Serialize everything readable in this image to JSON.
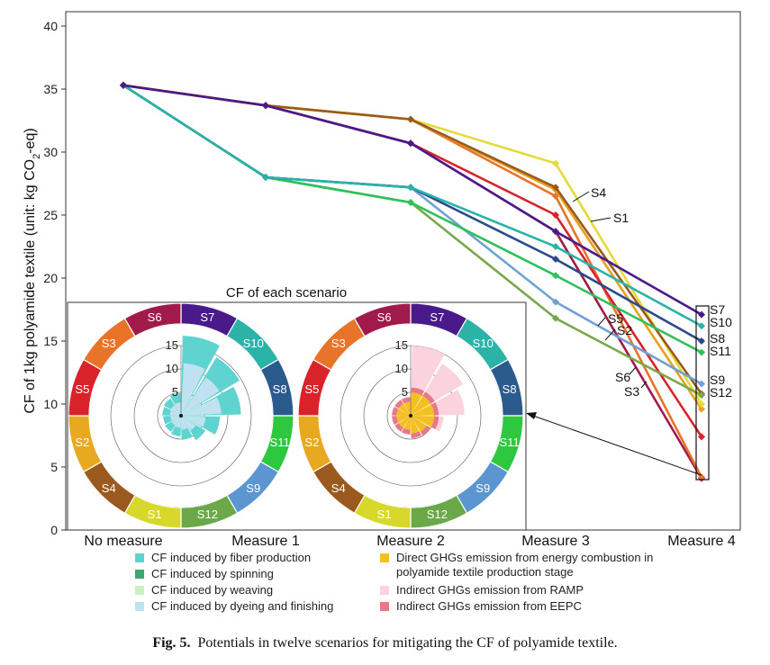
{
  "chart_data": [
    {
      "type": "line",
      "categories": [
        "No measure",
        "Measure 1",
        "Measure 2",
        "Measure 3",
        "Measure 4"
      ],
      "ylabel": "CF of 1kg polyamide textile (unit: kg CO",
      "ylabel_sub": "2",
      "ylabel_end": "-eq)",
      "ylim": [
        0,
        40
      ],
      "yticks": [
        0,
        5,
        10,
        15,
        20,
        25,
        30,
        35,
        40
      ],
      "grid": false,
      "series": [
        {
          "name": "S7",
          "color": "#4b1a8a",
          "values": [
            35.3,
            33.7,
            30.7,
            23.7,
            17.1
          ]
        },
        {
          "name": "S10",
          "color": "#2bb3a8",
          "values": [
            35.3,
            28.0,
            27.2,
            22.5,
            16.2
          ]
        },
        {
          "name": "S8",
          "color": "#2b4a8c",
          "values": [
            35.3,
            28.0,
            27.2,
            21.5,
            15.0
          ]
        },
        {
          "name": "S11",
          "color": "#2ec05a",
          "values": [
            35.3,
            28.0,
            26.0,
            20.2,
            14.1
          ]
        },
        {
          "name": "S9",
          "color": "#6fa1d4",
          "values": [
            35.3,
            28.0,
            27.2,
            18.1,
            11.6
          ]
        },
        {
          "name": "S12",
          "color": "#7aa84a",
          "values": [
            35.3,
            28.0,
            26.0,
            16.8,
            10.7
          ]
        },
        {
          "name": "S4",
          "color": "#9a5a1e",
          "values": [
            35.3,
            33.7,
            32.6,
            27.2,
            10.8
          ]
        },
        {
          "name": "S1",
          "color": "#e6d93a",
          "values": [
            35.3,
            33.7,
            32.6,
            29.1,
            10.0
          ]
        },
        {
          "name": "S2",
          "color": "#e8a020",
          "values": [
            35.3,
            33.7,
            32.6,
            27.0,
            9.6
          ]
        },
        {
          "name": "S5",
          "color": "#d8232a",
          "values": [
            35.3,
            33.7,
            30.7,
            25.0,
            7.4
          ]
        },
        {
          "name": "S3",
          "color": "#e8742a",
          "values": [
            35.3,
            33.7,
            32.6,
            26.5,
            4.2
          ]
        },
        {
          "name": "S6",
          "color": "#a01a4a",
          "values": [
            35.3,
            33.7,
            30.7,
            23.7,
            4.1
          ]
        }
      ],
      "line_labels": [
        "S4",
        "S1",
        "S5",
        "S2",
        "S6",
        "S3"
      ],
      "end_labels": [
        "S7",
        "S10",
        "S8",
        "S11",
        "S9",
        "S12"
      ]
    },
    {
      "type": "radial-bar",
      "title": "CF of each scenario",
      "rticks": [
        5,
        10,
        15
      ],
      "ring_segments": [
        {
          "label": "S7",
          "color": "#4b1a8a"
        },
        {
          "label": "S10",
          "color": "#2bb3a8"
        },
        {
          "label": "S8",
          "color": "#2b5a8c"
        },
        {
          "label": "S11",
          "color": "#2ec840"
        },
        {
          "label": "S9",
          "color": "#5b96d0"
        },
        {
          "label": "S12",
          "color": "#6aa84a"
        },
        {
          "label": "S1",
          "color": "#d8d82a"
        },
        {
          "label": "S4",
          "color": "#9a5a1e"
        },
        {
          "label": "S2",
          "color": "#e8a820"
        },
        {
          "label": "S5",
          "color": "#d8232a"
        },
        {
          "label": "S3",
          "color": "#e8742a"
        },
        {
          "label": "S6",
          "color": "#a01a4a"
        }
      ],
      "left_wheel": {
        "colors": [
          "#5fd3cf",
          "#c0e2f0"
        ],
        "values": [
          [
            15.0,
            2.1
          ],
          [
            13.0,
            1.6
          ],
          [
            11.5,
            1.3
          ],
          [
            7.0,
            1.3
          ],
          [
            5.0,
            1.1
          ],
          [
            4.0,
            1.1
          ],
          [
            3.5,
            0.9
          ],
          [
            3.2,
            0.8
          ],
          [
            3.0,
            0.8
          ],
          [
            3.2,
            0.8
          ],
          [
            3.5,
            0.8
          ],
          [
            3.8,
            1.0
          ]
        ]
      },
      "right_wheel": {
        "colors": [
          "#f2c020",
          "#e87888",
          "#fad3dc"
        ],
        "values": [
          [
            5.0,
            1.0,
            15.0
          ],
          [
            5.0,
            1.0,
            13.0
          ],
          [
            5.0,
            1.0,
            11.5
          ],
          [
            5.0,
            1.0,
            7.0
          ],
          [
            4.0,
            1.0,
            5.0
          ],
          [
            3.8,
            1.0,
            4.0
          ],
          [
            3.0,
            1.0,
            3.5
          ],
          [
            3.0,
            1.0,
            3.2
          ],
          [
            3.0,
            1.0,
            3.0
          ],
          [
            3.0,
            1.0,
            3.2
          ],
          [
            3.0,
            1.0,
            3.5
          ],
          [
            3.0,
            1.0,
            3.8
          ]
        ]
      }
    }
  ],
  "legend": [
    {
      "label": "CF induced by fiber production",
      "color": "#5fd3cf"
    },
    {
      "label": "CF induced by spinning",
      "color": "#3aa870"
    },
    {
      "label": "CF induced by weaving",
      "color": "#c8f0c0"
    },
    {
      "label": "CF induced by dyeing and finishing",
      "color": "#c0e2f0"
    },
    {
      "label": "Direct GHGs emission from energy combustion in polyamide textile production stage",
      "color": "#f2c020"
    },
    {
      "label": "Indirect GHGs emission from RAMP",
      "color": "#fad3dc"
    },
    {
      "label": "Indirect GHGs emission from EEPC",
      "color": "#e87888"
    }
  ],
  "caption": {
    "prefix": "Fig. 5.",
    "text": "Potentials in twelve scenarios for mitigating the CF of polyamide textile."
  }
}
